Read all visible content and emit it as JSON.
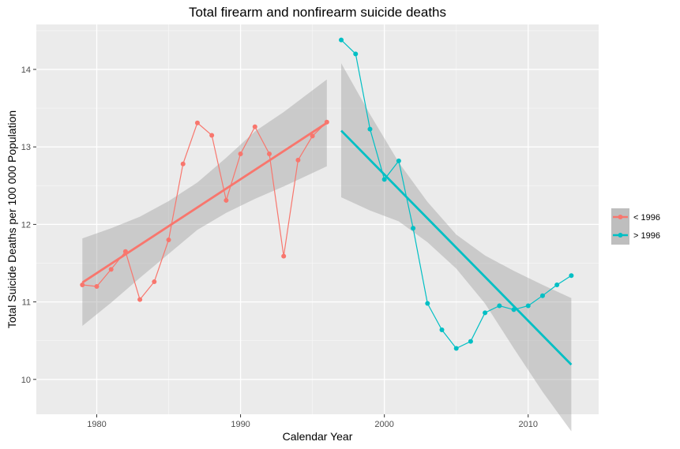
{
  "chart_data": {
    "type": "line",
    "title": "Total firearm and nonfirearm suicide deaths",
    "xlabel": "Calendar Year",
    "ylabel": "Total Suicide Deaths per 100 000 Population",
    "xlim": [
      1975.8,
      2014.9
    ],
    "ylim": [
      9.55,
      14.58
    ],
    "x_ticks": [
      1980,
      1990,
      2000,
      2010
    ],
    "y_ticks": [
      10,
      11,
      12,
      13,
      14
    ],
    "grid": true,
    "legend_position": "right",
    "series": [
      {
        "name": "< 1996",
        "color": "#F8766D",
        "x": [
          1979,
          1980,
          1981,
          1982,
          1983,
          1984,
          1985,
          1986,
          1987,
          1988,
          1989,
          1990,
          1991,
          1992,
          1993,
          1994,
          1995,
          1996
        ],
        "y": [
          11.22,
          11.2,
          11.42,
          11.65,
          11.03,
          11.26,
          11.8,
          12.78,
          13.31,
          13.15,
          12.31,
          12.91,
          13.26,
          12.91,
          11.59,
          12.83,
          13.14,
          13.32
        ],
        "trend": {
          "x": [
            1979,
            1996
          ],
          "y": [
            11.25,
            13.31
          ]
        },
        "ci_x": [
          1979,
          1981,
          1983,
          1985,
          1987,
          1989,
          1991,
          1993,
          1996
        ],
        "ci_upper": [
          11.82,
          11.95,
          12.1,
          12.3,
          12.54,
          12.86,
          13.2,
          13.45,
          13.87
        ],
        "ci_lower": [
          10.69,
          10.99,
          11.31,
          11.62,
          11.93,
          12.15,
          12.33,
          12.49,
          12.75
        ]
      },
      {
        "name": "> 1996",
        "color": "#00BFC4",
        "x": [
          1997,
          1998,
          1999,
          2000,
          2001,
          2002,
          2003,
          2004,
          2005,
          2006,
          2007,
          2008,
          2009,
          2010,
          2011,
          2012,
          2013
        ],
        "y": [
          14.38,
          14.2,
          13.23,
          12.58,
          12.82,
          11.95,
          10.98,
          10.64,
          10.4,
          10.49,
          10.86,
          10.95,
          10.9,
          10.95,
          11.08,
          11.22,
          11.34
        ],
        "trend": {
          "x": [
            1997,
            2013
          ],
          "y": [
            13.21,
            10.19
          ]
        },
        "ci_x": [
          1997,
          1999,
          2001,
          2003,
          2005,
          2007,
          2009,
          2011,
          2013
        ],
        "ci_upper": [
          14.08,
          13.42,
          12.8,
          12.29,
          11.87,
          11.6,
          11.4,
          11.22,
          11.05
        ],
        "ci_lower": [
          12.35,
          12.18,
          12.04,
          11.77,
          11.43,
          10.98,
          10.4,
          9.84,
          9.33
        ]
      }
    ]
  }
}
